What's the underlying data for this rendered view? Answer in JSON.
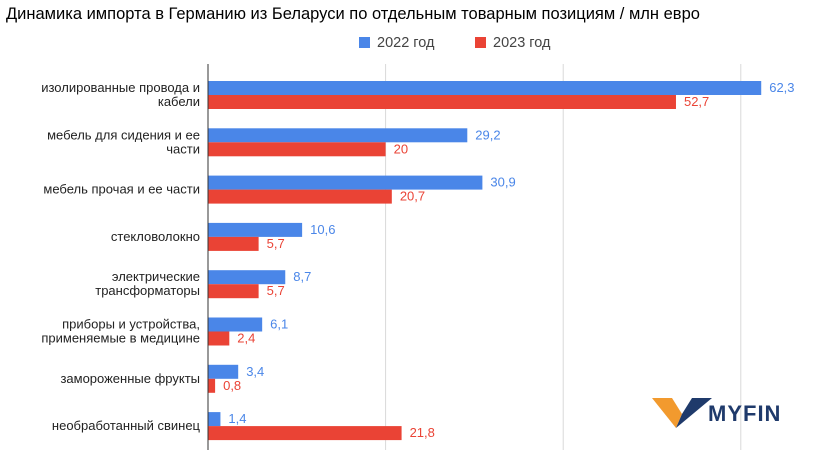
{
  "chart_data": {
    "type": "bar",
    "orientation": "horizontal",
    "title": "Динамика импорта в Германию из Беларуси по отдельным товарным позициям / млн евро",
    "categories": [
      [
        "изолированные провода и",
        "кабели"
      ],
      [
        "мебель для сидения и ее",
        "части"
      ],
      [
        "мебель прочая и ее части"
      ],
      [
        "стекловолокно"
      ],
      [
        "электрические",
        "трансформаторы"
      ],
      [
        "приборы и устройства,",
        "применяемые в медицине"
      ],
      [
        "замороженные фрукты"
      ],
      [
        "необработанный свинец"
      ]
    ],
    "series": [
      {
        "name": "2022 год",
        "color": "#4a86e8",
        "values": [
          62.3,
          29.2,
          30.9,
          10.6,
          8.7,
          6.1,
          3.4,
          1.4
        ],
        "labels": [
          "62,3",
          "29,2",
          "30,9",
          "10,6",
          "8,7",
          "6,1",
          "3,4",
          "1,4"
        ]
      },
      {
        "name": "2023 год",
        "color": "#ea4335",
        "values": [
          52.7,
          20,
          20.7,
          5.7,
          5.7,
          2.4,
          0.8,
          21.8
        ],
        "labels": [
          "52,7",
          "20",
          "20,7",
          "5,7",
          "5,7",
          "2,4",
          "0,8",
          "21,8"
        ]
      }
    ],
    "xlim": [
      0,
      70
    ],
    "grid": true,
    "legend": "top-center"
  },
  "logo": {
    "text": "MYFIN",
    "icon": "myfin-v-icon",
    "colors": [
      "#f29a2e",
      "#1f3a6b"
    ]
  }
}
